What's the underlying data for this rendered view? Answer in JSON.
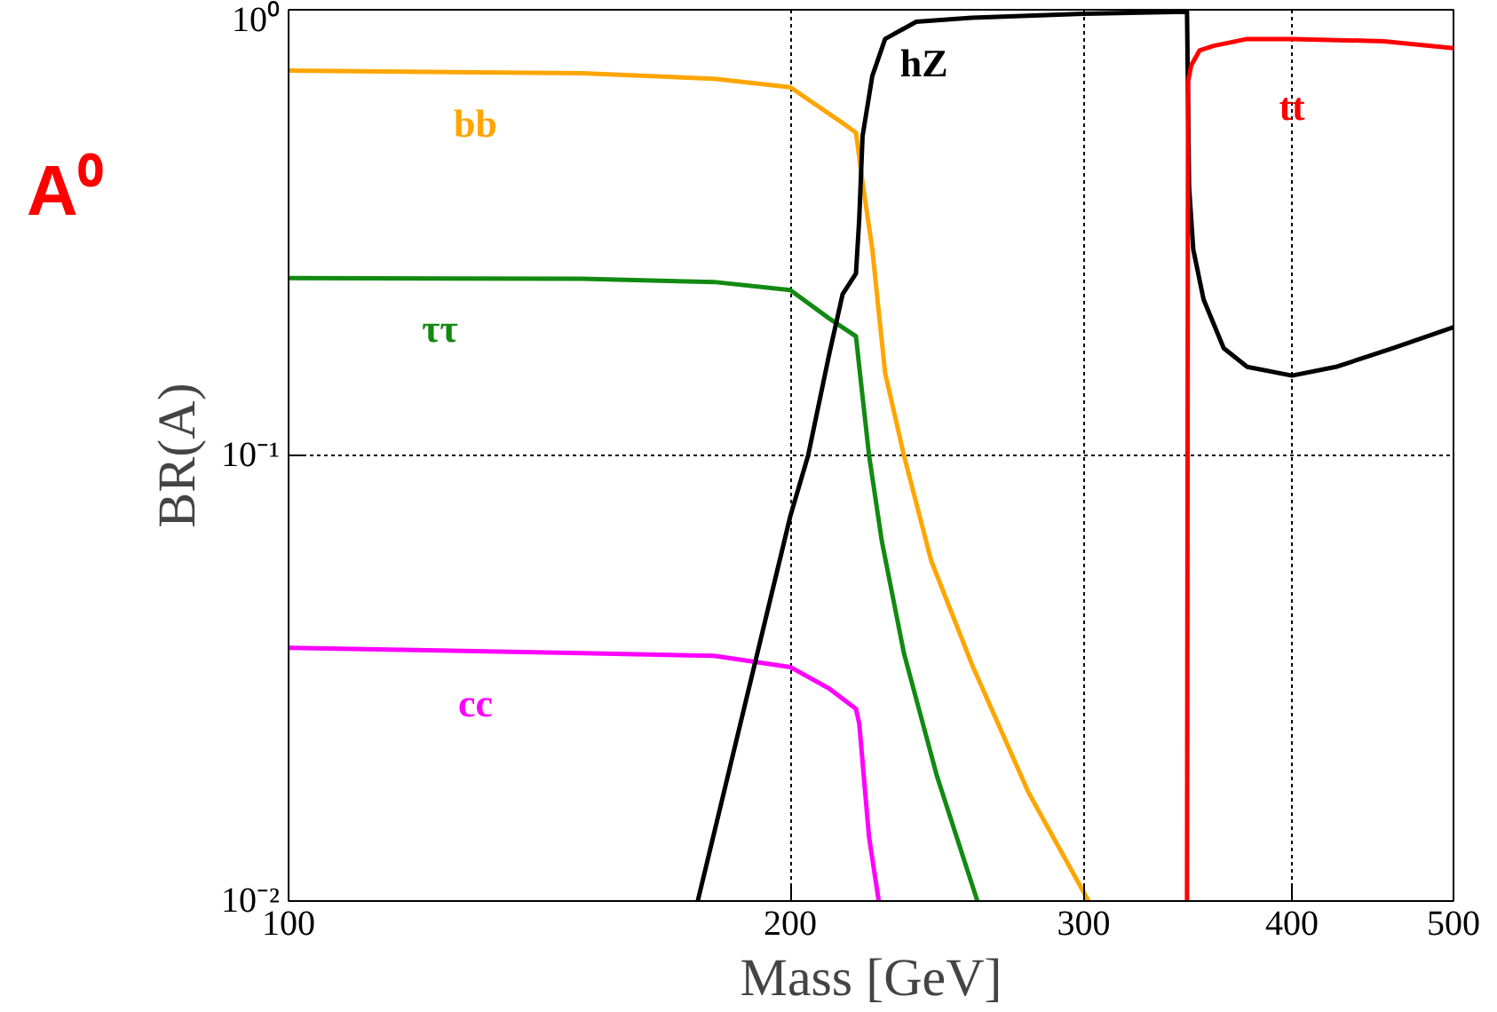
{
  "chart_data": {
    "type": "line",
    "title": "A⁰",
    "xlabel": "Mass [GeV]",
    "ylabel": "BR(A)",
    "log": "xy",
    "grid": true,
    "xlim": [
      100,
      500
    ],
    "xticks": [
      100,
      200,
      300,
      400,
      500
    ],
    "ylim": [
      0.01,
      1
    ],
    "yticks": [
      {
        "value": 0.01,
        "label": "10⁻²"
      },
      {
        "value": 0.1,
        "label": "10⁻¹"
      },
      {
        "value": 1,
        "label": "10⁰"
      }
    ],
    "series": [
      {
        "name": "bb",
        "color": "#ffa500",
        "x": [
          100,
          150,
          180,
          200,
          215,
          219,
          221,
          224,
          228,
          234,
          243,
          257,
          278,
          302
        ],
        "values": [
          0.73,
          0.72,
          0.7,
          0.67,
          0.557,
          0.53,
          0.41,
          0.29,
          0.153,
          0.1,
          0.058,
          0.034,
          0.0175,
          0.01
        ]
      },
      {
        "name": "ττ",
        "color": "#128a12",
        "x": [
          100,
          150,
          180,
          200,
          211,
          219,
          220,
          223,
          227,
          234,
          245,
          259
        ],
        "values": [
          0.25,
          0.249,
          0.245,
          0.235,
          0.203,
          0.185,
          0.158,
          0.1,
          0.064,
          0.036,
          0.019,
          0.01
        ]
      },
      {
        "name": "cc",
        "color": "#ff00ff",
        "x": [
          100,
          150,
          180,
          200,
          211,
          219,
          220,
          223,
          226
        ],
        "values": [
          0.037,
          0.036,
          0.0355,
          0.0335,
          0.03,
          0.027,
          0.025,
          0.0139,
          0.01
        ]
      },
      {
        "name": "hZ",
        "color": "#000000",
        "x": [
          176,
          200,
          205,
          211,
          215,
          219,
          220,
          221,
          224,
          228,
          238,
          257,
          300,
          346,
          347,
          349,
          354,
          364,
          376,
          400,
          425,
          460,
          500
        ],
        "values": [
          0.01,
          0.073,
          0.1,
          0.168,
          0.23,
          0.256,
          0.34,
          0.52,
          0.71,
          0.86,
          0.94,
          0.96,
          0.98,
          0.99,
          0.4,
          0.29,
          0.224,
          0.174,
          0.158,
          0.151,
          0.158,
          0.174,
          0.194
        ]
      },
      {
        "name": "tt",
        "color": "#ff0000",
        "x": [
          346,
          346.5,
          348,
          352,
          359,
          376,
          400,
          454,
          500
        ],
        "values": [
          0.01,
          0.69,
          0.75,
          0.81,
          0.83,
          0.86,
          0.86,
          0.85,
          0.82
        ]
      }
    ]
  }
}
